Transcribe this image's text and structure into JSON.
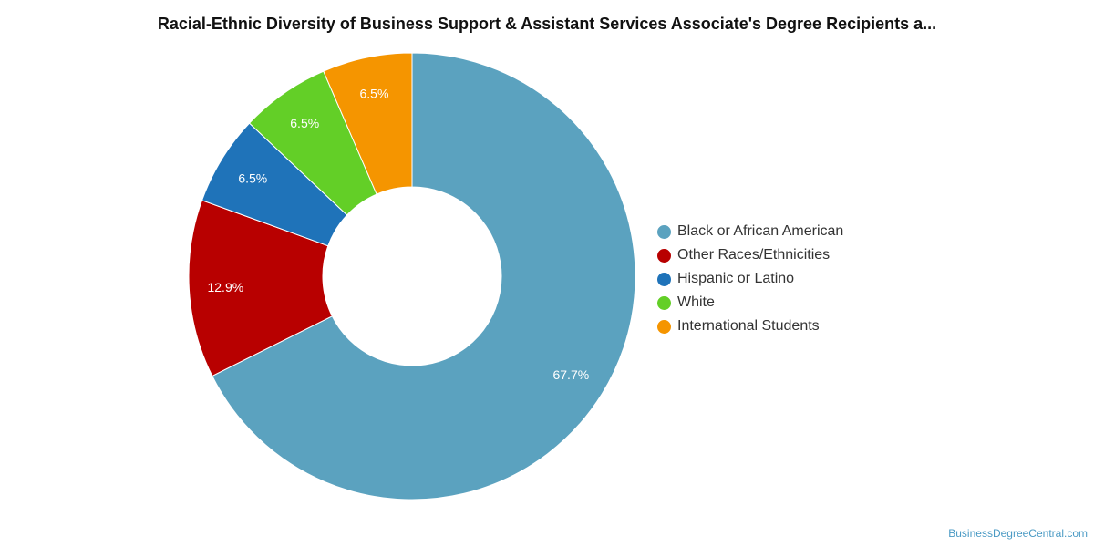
{
  "chart_data": {
    "type": "pie",
    "title": "Racial-Ethnic Diversity of Business Support & Assistant Services Associate's Degree Recipients a...",
    "categories": [
      "Black or African American",
      "Other Races/Ethnicities",
      "Hispanic or Latino",
      "White",
      "International Students"
    ],
    "values": [
      67.7,
      12.9,
      6.5,
      6.5,
      6.5
    ],
    "data_labels": [
      "67.7%",
      "12.9%",
      "6.5%",
      "6.5%",
      "6.5%"
    ],
    "colors": [
      "#5ba2bf",
      "#b80000",
      "#1f73b9",
      "#63cf27",
      "#f59500"
    ],
    "donut": true,
    "legend_placement": "right"
  },
  "legend": {
    "items": [
      {
        "label": "Black or African American"
      },
      {
        "label": "Other Races/Ethnicities"
      },
      {
        "label": "Hispanic or Latino"
      },
      {
        "label": "White"
      },
      {
        "label": "International Students"
      }
    ]
  },
  "watermark": "BusinessDegreeCentral.com"
}
